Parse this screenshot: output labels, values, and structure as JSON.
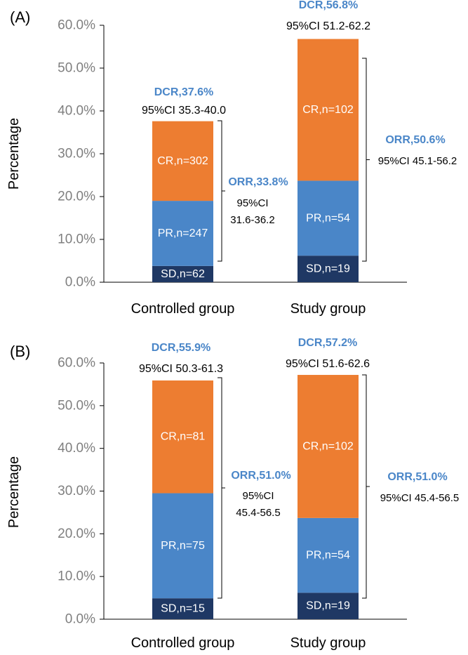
{
  "chart_data": [
    {
      "type": "bar",
      "panel_label": "(A)",
      "ylabel": "Percentage",
      "ylim": [
        0,
        60
      ],
      "yticks": [
        "0.0%",
        "10.0%",
        "20.0%",
        "30.0%",
        "40.0%",
        "50.0%",
        "60.0%"
      ],
      "categories": [
        "Controlled group",
        "Study group"
      ],
      "stacked": true,
      "series": [
        {
          "key": "SD",
          "values": [
            3.8,
            6.2
          ],
          "labels": [
            "SD,n=62",
            "SD,n=19"
          ]
        },
        {
          "key": "PR",
          "values": [
            15.2,
            17.5
          ],
          "labels": [
            "PR,n=247",
            "PR,n=54"
          ]
        },
        {
          "key": "CR",
          "values": [
            18.6,
            33.1
          ],
          "labels": [
            "CR,n=302",
            "CR,n=102"
          ]
        }
      ],
      "dcr": [
        {
          "title": "DCR,37.6%",
          "ci": "95%CI 35.3-40.0"
        },
        {
          "title": "DCR,56.8%",
          "ci": "95%CI 51.2-62.2"
        }
      ],
      "orr": [
        {
          "title": "ORR,33.8%",
          "ci_line1": "95%CI",
          "ci_line2": "31.6-36.2"
        },
        {
          "title": "ORR,50.6%",
          "ci_line1": "95%CI 45.1-56.2",
          "ci_line2": ""
        }
      ]
    },
    {
      "type": "bar",
      "panel_label": "(B)",
      "ylabel": "Percentage",
      "ylim": [
        0,
        60
      ],
      "yticks": [
        "0.0%",
        "10.0%",
        "20.0%",
        "30.0%",
        "40.0%",
        "50.0%",
        "60.0%"
      ],
      "categories": [
        "Controlled group",
        "Study group"
      ],
      "stacked": true,
      "series": [
        {
          "key": "SD",
          "values": [
            4.9,
            6.2
          ],
          "labels": [
            "SD,n=15",
            "SD,n=19"
          ]
        },
        {
          "key": "PR",
          "values": [
            24.6,
            17.5
          ],
          "labels": [
            "PR,n=75",
            "PR,n=54"
          ]
        },
        {
          "key": "CR",
          "values": [
            26.4,
            33.5
          ],
          "labels": [
            "CR,n=81",
            "CR,n=102"
          ]
        }
      ],
      "dcr": [
        {
          "title": "DCR,55.9%",
          "ci": "95%CI 50.3-61.3"
        },
        {
          "title": "DCR,57.2%",
          "ci": "95%CI 51.6-62.6"
        }
      ],
      "orr": [
        {
          "title": "ORR,51.0%",
          "ci_line1": "95%CI",
          "ci_line2": "45.4-56.5"
        },
        {
          "title": "ORR,51.0%",
          "ci_line1": "95%CI 45.4-56.5",
          "ci_line2": ""
        }
      ]
    }
  ],
  "colors": {
    "SD": "#1f3864",
    "PR": "#4a86c8",
    "CR": "#ed7d31",
    "annotation_title": "#4a86c8",
    "axis_text": "#7f7f7f",
    "text": "#000000"
  }
}
